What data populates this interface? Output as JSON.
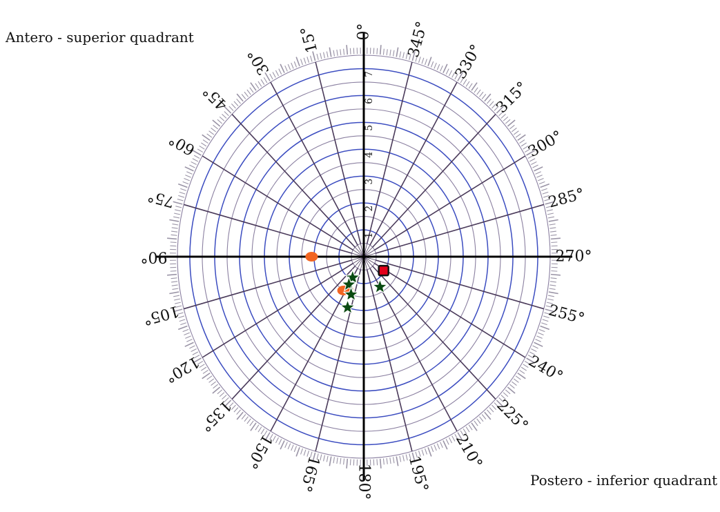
{
  "labels": {
    "antero_superior": "Antero - superior quadrant",
    "postero_inferior": "Postero - inferior quadrant"
  },
  "colors": {
    "major_ring": "#3b4cc0",
    "minor_ring": "#8a7fa0",
    "spoke": "#4a3a5a",
    "axis": "#000000",
    "tick": "#9a94a6",
    "orange_marker": "#f26522",
    "star_marker": "#0a4a12",
    "red_marker": "#e3001b",
    "red_marker_outline": "#111111"
  },
  "chart_data": {
    "type": "polar-scatter",
    "angular_direction": "counterclockwise",
    "zero_angle_position": "top",
    "angle_ticks_deg": [
      0,
      15,
      30,
      45,
      60,
      75,
      90,
      105,
      120,
      135,
      150,
      165,
      180,
      195,
      210,
      225,
      240,
      255,
      270,
      285,
      300,
      315,
      330,
      345
    ],
    "angle_tick_labels": [
      "0°",
      "15°",
      "30°",
      "45°",
      "60°",
      "75°",
      "90°",
      "105°",
      "120°",
      "135°",
      "150°",
      "165°",
      "180°",
      "195°",
      "210°",
      "225°",
      "240°",
      "255°",
      "270°",
      "285°",
      "300°",
      "315°",
      "330°",
      "345°"
    ],
    "radial_range": [
      0,
      7.5
    ],
    "radial_major_ticks": [
      1,
      2,
      3,
      4,
      5,
      6,
      7
    ],
    "radial_tick_labels": [
      "1",
      "2",
      "3",
      "4",
      "5",
      "6",
      "7"
    ],
    "radial_minor_step": 0.5,
    "series": [
      {
        "marker": "ellipse",
        "points": [
          {
            "angle": 90,
            "r": 2.1
          },
          {
            "angle": 147,
            "r": 1.5
          },
          {
            "angle": 152,
            "r": 1.4
          }
        ]
      },
      {
        "marker": "star",
        "points": [
          {
            "angle": 150,
            "r": 0.9
          },
          {
            "angle": 150,
            "r": 1.2
          },
          {
            "angle": 160,
            "r": 1.5
          },
          {
            "angle": 161,
            "r": 2.0
          },
          {
            "angle": 210,
            "r": 1.3
          }
        ]
      },
      {
        "marker": "square",
        "points": [
          {
            "angle": 237,
            "r": 0.95
          }
        ]
      }
    ]
  }
}
